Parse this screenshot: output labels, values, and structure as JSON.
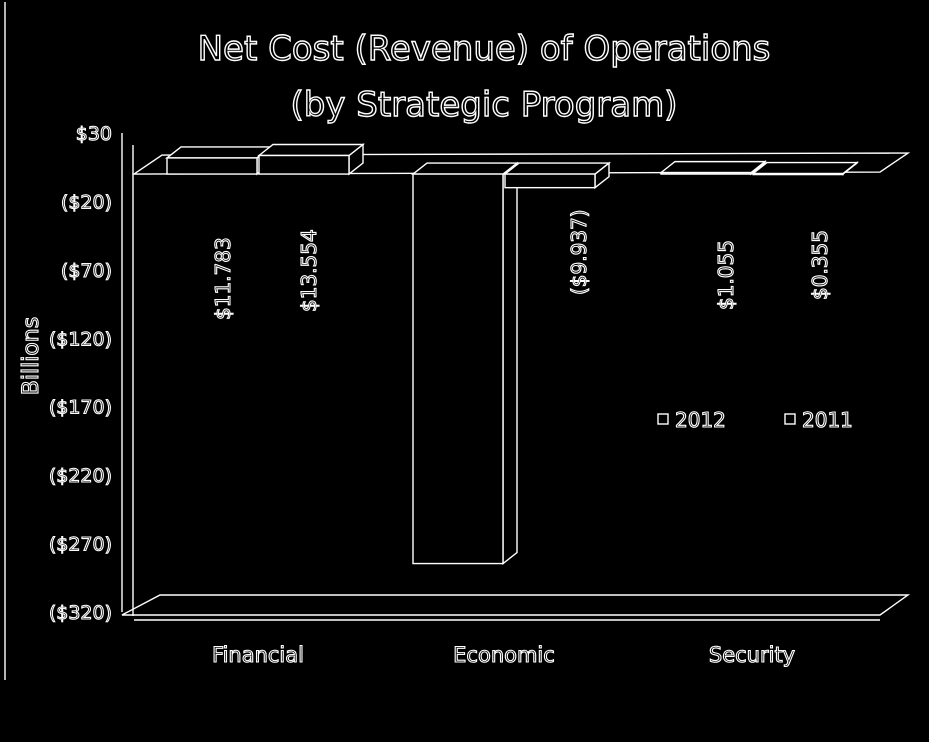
{
  "chart_data": {
    "type": "bar",
    "title_lines": [
      "Net Cost (Revenue) of Operations",
      "(by Strategic Program)"
    ],
    "ylabel": "Billions",
    "ylim": [
      -320,
      30
    ],
    "yticks": [
      30,
      -20,
      -70,
      -120,
      -170,
      -220,
      -270,
      -320
    ],
    "ytick_labels": [
      "$30",
      "($20)",
      "($70)",
      "($120)",
      "($170)",
      "($220)",
      "($270)",
      "($320)"
    ],
    "categories": [
      "Financial",
      "Economic",
      "Security"
    ],
    "series": [
      {
        "name": "2012",
        "values": [
          11.783,
          -284.6,
          1.055
        ],
        "labels": [
          "$11.783",
          "",
          "$1.055"
        ]
      },
      {
        "name": "2011",
        "values": [
          13.554,
          -9.937,
          0.355
        ],
        "labels": [
          "$13.554",
          "($9.937)",
          "$0.355"
        ]
      }
    ],
    "legend": {
      "placement": "right",
      "entries": [
        "2012",
        "2011"
      ]
    },
    "style": {
      "background": "#000000",
      "stroke": "#ffffff"
    },
    "render_style": "3d-outline"
  }
}
